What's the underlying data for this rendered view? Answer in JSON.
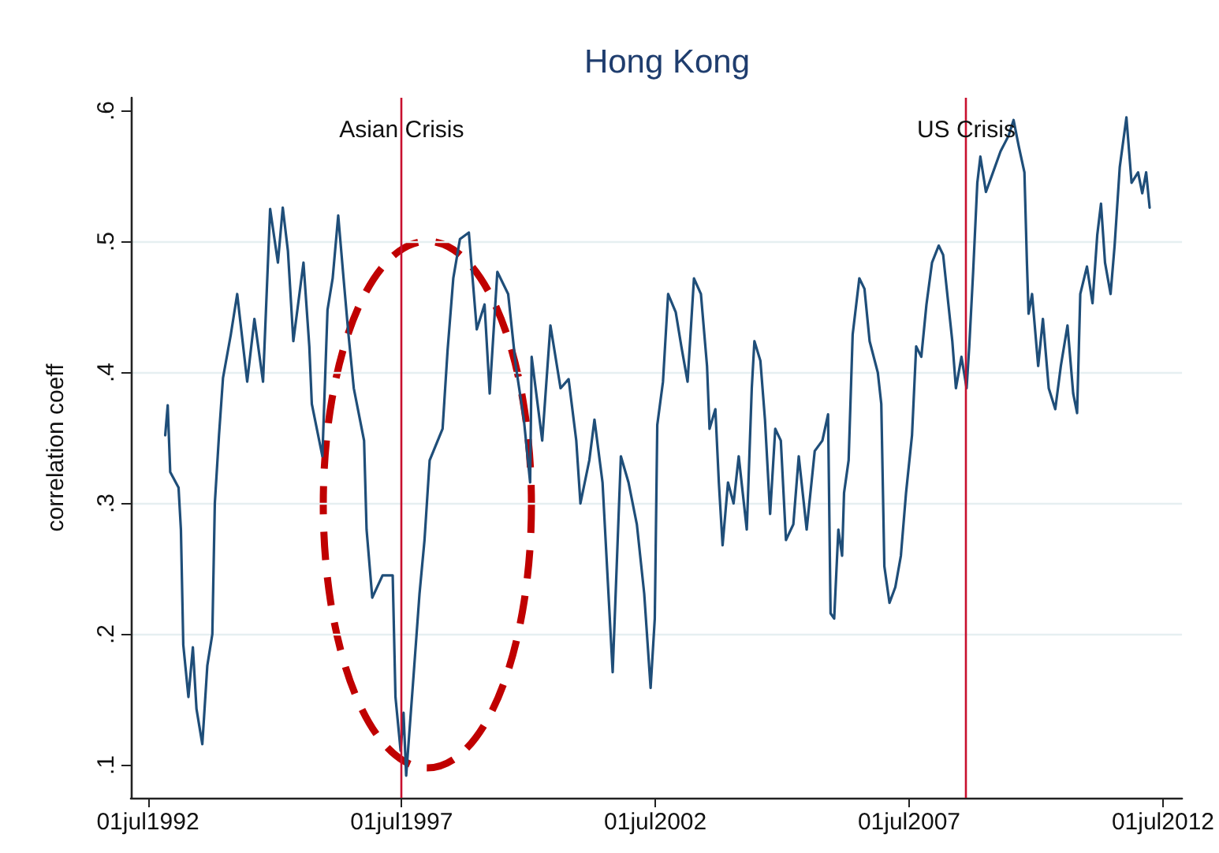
{
  "chart_data": {
    "type": "line",
    "title": "Hong Kong",
    "ylabel": "correlation coeff",
    "xlim": [
      "1992-03-01",
      "2012-11-15"
    ],
    "xticks": [
      {
        "value": "1992-07-01",
        "label": "01jul1992"
      },
      {
        "value": "1997-07-01",
        "label": "01jul1997"
      },
      {
        "value": "2002-07-01",
        "label": "01jul2002"
      },
      {
        "value": "2007-07-01",
        "label": "01jul2007"
      },
      {
        "value": "2012-07-01",
        "label": "01jul2012"
      }
    ],
    "ylim": [
      0.075,
      0.61
    ],
    "yticks": [
      {
        "value": 0.1,
        "label": ".1"
      },
      {
        "value": 0.2,
        "label": ".2"
      },
      {
        "value": 0.3,
        "label": ".3"
      },
      {
        "value": 0.4,
        "label": ".4"
      },
      {
        "value": 0.5,
        "label": ".5"
      },
      {
        "value": 0.6,
        "label": ".6"
      }
    ],
    "grid": "y",
    "ref_lines": [
      {
        "axis": "x",
        "value": "1997-07-01",
        "label": "Asian Crisis",
        "color": "#c8102e"
      },
      {
        "axis": "x",
        "value": "2008-08-15",
        "label": "US Crisis",
        "color": "#c8102e"
      }
    ],
    "series": [
      {
        "color": "#1f4e79",
        "x": [
          "1992-11-03",
          "1992-11-21",
          "1992-12-09",
          "1993-02-07",
          "1993-02-24",
          "1993-03-13",
          "1993-04-19",
          "1993-05-21",
          "1993-06-16",
          "1993-07-28",
          "1993-09-02",
          "1993-10-08",
          "1993-10-26",
          "1993-11-25",
          "1993-12-24",
          "1994-02-18",
          "1994-04-05",
          "1994-06-16",
          "1994-08-07",
          "1994-10-08",
          "1994-11-28",
          "1995-01-23",
          "1995-02-27",
          "1995-04-05",
          "1995-05-14",
          "1995-07-26",
          "1995-09-06",
          "1995-09-24",
          "1995-12-09",
          "1996-01-15",
          "1996-02-21",
          "1996-04-01",
          "1996-05-07",
          "1996-06-13",
          "1996-07-22",
          "1996-10-04",
          "1996-10-22",
          "1996-12-02",
          "1997-02-14",
          "1997-04-28",
          "1997-05-18",
          "1997-06-24",
          "1997-07-15",
          "1997-08-03",
          "1997-09-27",
          "1997-11-07",
          "1997-12-13",
          "1998-01-19",
          "1998-04-22",
          "1998-05-28",
          "1998-07-08",
          "1998-08-25",
          "1998-10-28",
          "1998-12-24",
          "1999-02-18",
          "1999-03-27",
          "1999-05-21",
          "1999-08-07",
          "1999-10-01",
          "1999-11-28",
          "2000-01-12",
          "2000-01-23",
          "2000-04-08",
          "2000-06-06",
          "2000-08-18",
          "2000-10-15",
          "2000-12-09",
          "2001-01-08",
          "2001-03-13",
          "2001-04-19",
          "2001-06-16",
          "2001-08-28",
          "2001-10-26",
          "2001-12-20",
          "2002-02-18",
          "2002-04-12",
          "2002-05-28",
          "2002-06-27",
          "2002-07-15",
          "2002-08-25",
          "2002-10-01",
          "2002-11-25",
          "2003-01-04",
          "2003-02-18",
          "2003-04-05",
          "2003-05-25",
          "2003-07-08",
          "2003-07-26",
          "2003-09-06",
          "2003-10-01",
          "2003-10-28",
          "2003-12-06",
          "2004-01-15",
          "2004-02-21",
          "2004-04-19",
          "2004-05-25",
          "2004-06-13",
          "2004-07-26",
          "2004-08-28",
          "2004-10-04",
          "2004-11-10",
          "2004-12-20",
          "2005-01-26",
          "2005-03-20",
          "2005-04-28",
          "2005-06-24",
          "2005-08-21",
          "2005-10-15",
          "2005-11-25",
          "2005-12-13",
          "2006-01-08",
          "2006-02-07",
          "2006-03-06",
          "2006-03-20",
          "2006-04-22",
          "2006-05-21",
          "2006-07-08",
          "2006-08-14",
          "2006-09-20",
          "2006-11-18",
          "2006-12-13",
          "2007-01-04",
          "2007-02-10",
          "2007-03-24",
          "2007-05-03",
          "2007-06-09",
          "2007-07-22",
          "2007-08-21",
          "2007-09-27",
          "2007-11-03",
          "2007-12-13",
          "2008-01-30",
          "2008-03-02",
          "2008-04-08",
          "2008-05-07",
          "2008-06-02",
          "2008-07-12",
          "2008-08-18",
          "2008-09-06",
          "2008-10-04",
          "2008-11-03",
          "2008-11-25",
          "2009-01-04",
          "2009-02-24",
          "2009-04-19",
          "2009-06-16",
          "2009-07-22",
          "2009-08-28",
          "2009-10-08",
          "2009-10-26",
          "2009-11-07",
          "2009-12-02",
          "2010-01-15",
          "2010-02-18",
          "2010-04-01",
          "2010-05-18",
          "2010-06-27",
          "2010-08-14",
          "2010-09-24",
          "2010-10-22",
          "2010-11-14",
          "2011-01-01",
          "2011-02-10",
          "2011-03-16",
          "2011-04-12",
          "2011-05-11",
          "2011-06-20",
          "2011-07-19",
          "2011-08-25",
          "2011-10-12",
          "2011-11-18",
          "2012-01-04",
          "2012-02-03",
          "2012-03-02",
          "2012-03-27"
        ],
        "values": [
          0.352,
          0.375,
          0.324,
          0.312,
          0.28,
          0.192,
          0.152,
          0.19,
          0.143,
          0.116,
          0.176,
          0.2,
          0.3,
          0.352,
          0.396,
          0.429,
          0.46,
          0.393,
          0.441,
          0.393,
          0.525,
          0.484,
          0.526,
          0.493,
          0.424,
          0.484,
          0.42,
          0.376,
          0.336,
          0.448,
          0.472,
          0.52,
          0.475,
          0.43,
          0.388,
          0.348,
          0.28,
          0.228,
          0.245,
          0.245,
          0.152,
          0.111,
          0.14,
          0.092,
          0.171,
          0.231,
          0.272,
          0.333,
          0.357,
          0.417,
          0.472,
          0.502,
          0.507,
          0.433,
          0.452,
          0.384,
          0.477,
          0.46,
          0.405,
          0.364,
          0.316,
          0.412,
          0.348,
          0.436,
          0.388,
          0.395,
          0.348,
          0.3,
          0.333,
          0.364,
          0.316,
          0.171,
          0.336,
          0.316,
          0.284,
          0.231,
          0.159,
          0.212,
          0.36,
          0.393,
          0.46,
          0.446,
          0.42,
          0.393,
          0.472,
          0.46,
          0.405,
          0.357,
          0.372,
          0.316,
          0.268,
          0.316,
          0.3,
          0.336,
          0.28,
          0.388,
          0.424,
          0.409,
          0.364,
          0.292,
          0.357,
          0.348,
          0.272,
          0.284,
          0.336,
          0.28,
          0.34,
          0.348,
          0.368,
          0.216,
          0.212,
          0.28,
          0.26,
          0.308,
          0.333,
          0.429,
          0.472,
          0.464,
          0.424,
          0.4,
          0.376,
          0.252,
          0.224,
          0.236,
          0.26,
          0.308,
          0.352,
          0.42,
          0.412,
          0.452,
          0.484,
          0.497,
          0.49,
          0.453,
          0.424,
          0.388,
          0.412,
          0.388,
          0.42,
          0.477,
          0.545,
          0.565,
          0.538,
          0.553,
          0.569,
          0.581,
          0.593,
          0.573,
          0.553,
          0.484,
          0.445,
          0.46,
          0.405,
          0.441,
          0.388,
          0.372,
          0.405,
          0.436,
          0.384,
          0.369,
          0.46,
          0.481,
          0.453,
          0.505,
          0.529,
          0.484,
          0.46,
          0.497,
          0.557,
          0.595,
          0.545,
          0.553,
          0.537,
          0.553,
          0.526
        ]
      }
    ]
  }
}
